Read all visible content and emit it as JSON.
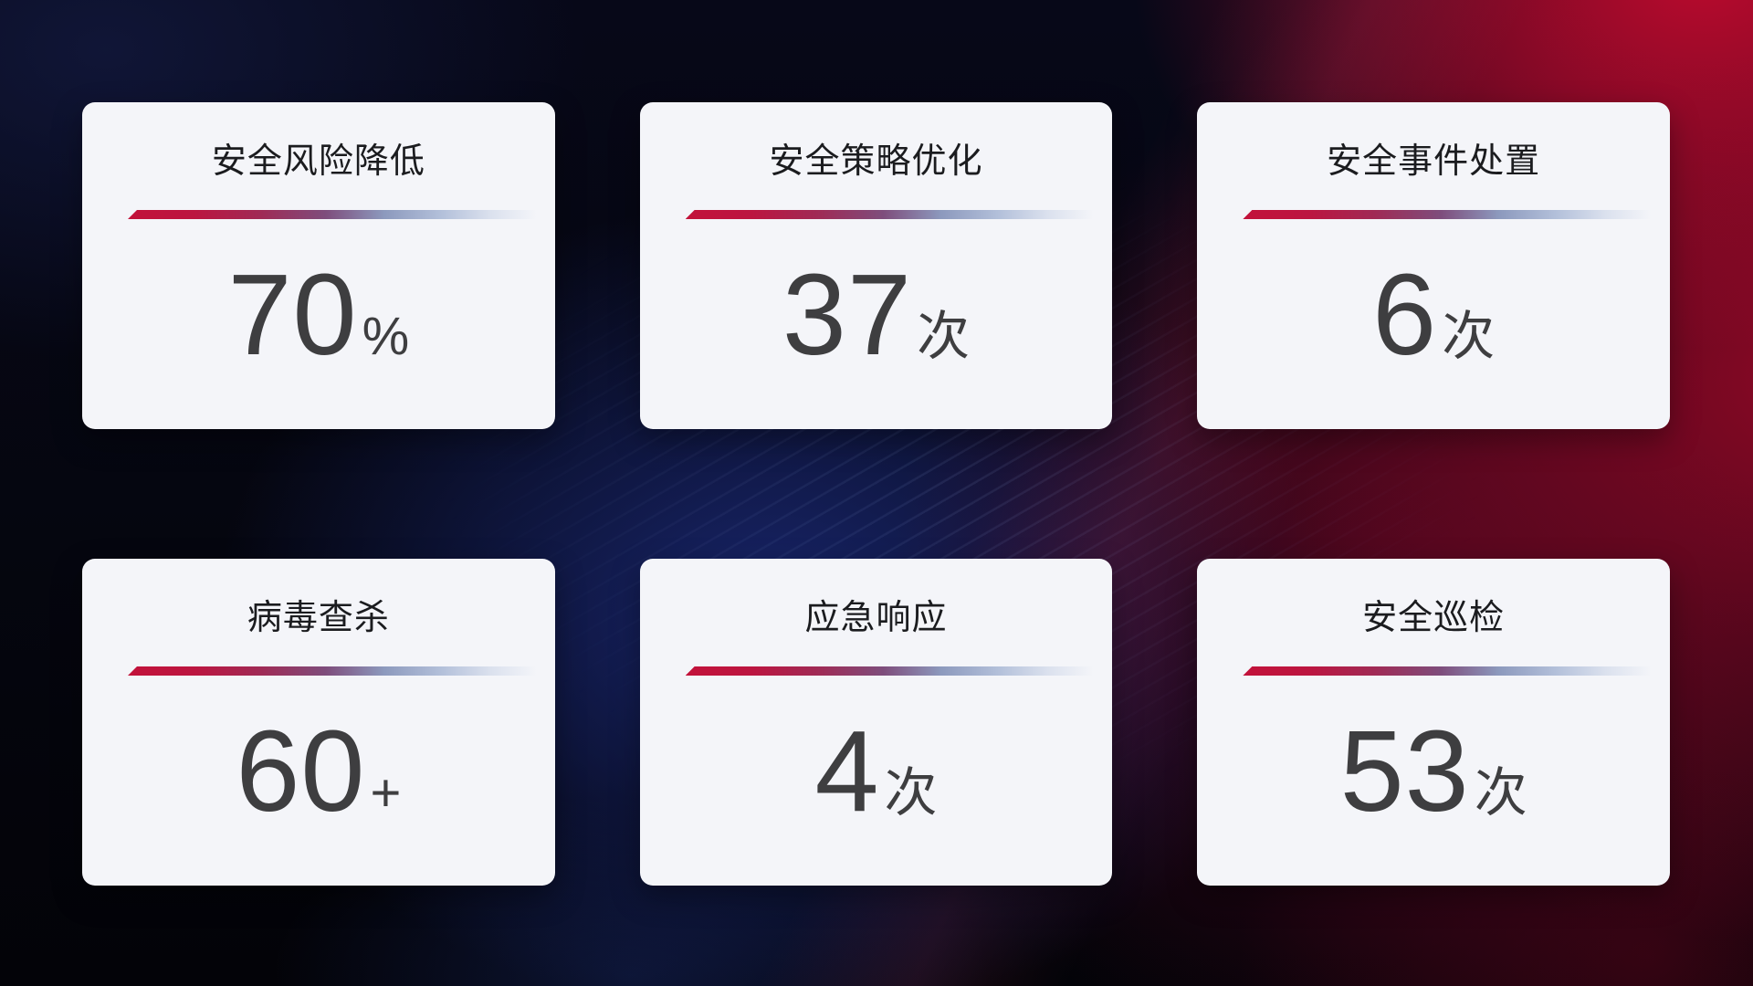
{
  "theme": {
    "card_background": "#f4f5f9",
    "title_color": "#1b1c1f",
    "value_color": "#3e3e40",
    "divider_red": "#c2123a",
    "divider_blue_gray": "#b3c0da",
    "background_navy": "#11173a",
    "background_blue_glow": "#1b2a7a",
    "background_red": "#940826",
    "background_crimson": "#c00a2e"
  },
  "cards": [
    {
      "title": "安全风险降低",
      "value": "70",
      "unit": "%"
    },
    {
      "title": "安全策略优化",
      "value": "37",
      "unit": "次"
    },
    {
      "title": "安全事件处置",
      "value": "6",
      "unit": "次"
    },
    {
      "title": "病毒查杀",
      "value": "60",
      "unit": "+"
    },
    {
      "title": "应急响应",
      "value": "4",
      "unit": "次"
    },
    {
      "title": "安全巡检",
      "value": "53",
      "unit": "次"
    }
  ]
}
